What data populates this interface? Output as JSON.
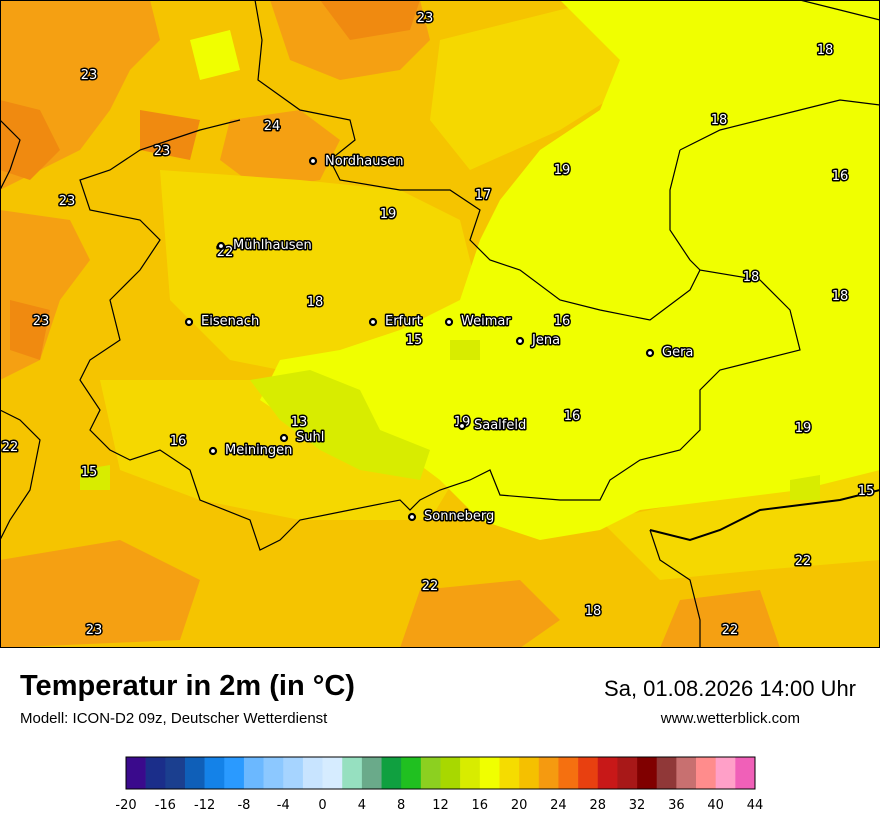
{
  "map": {
    "cities": [
      {
        "name": "Nordhausen",
        "dot": "nordhausen-dot"
      },
      {
        "name": "Mühlhausen",
        "dot": "muehlhausen-dot"
      },
      {
        "name": "Eisenach",
        "dot": "eisenach-dot"
      },
      {
        "name": "Erfurt",
        "dot": "erfurt-dot"
      },
      {
        "name": "Weimar",
        "dot": "weimar-dot"
      },
      {
        "name": "Jena",
        "dot": "jena-dot"
      },
      {
        "name": "Gera",
        "dot": "gera-dot"
      },
      {
        "name": "Suhl",
        "dot": "suhl-dot"
      },
      {
        "name": "Meiningen",
        "dot": "meiningen-dot"
      },
      {
        "name": "Saalfeld",
        "dot": "saalfeld-dot"
      },
      {
        "name": "Sonneberg",
        "dot": "sonneberg-dot"
      }
    ],
    "temperatures": [
      "23",
      "18",
      "23",
      "18",
      "24",
      "23",
      "19",
      "16",
      "23",
      "17",
      "19",
      "22",
      "18",
      "18",
      "23",
      "18",
      "16",
      "15",
      "13",
      "19",
      "16",
      "16",
      "22",
      "19",
      "15",
      "15",
      "22",
      "22",
      "18",
      "23",
      "22"
    ]
  },
  "footer": {
    "title": "Temperatur in 2m (in °C)",
    "model": "Modell: ICON-D2 09z, Deutscher Wetterdienst",
    "datetime": "Sa, 01.08.2026 14:00 Uhr",
    "website": "www.wetterblick.com"
  },
  "legend": {
    "ticks": [
      "-20",
      "-16",
      "-12",
      "-8",
      "-4",
      "0",
      "4",
      "8",
      "12",
      "16",
      "20",
      "24",
      "28",
      "32",
      "36",
      "40",
      "44"
    ],
    "colors": [
      "#3a0a8c",
      "#1b2e8a",
      "#1b3f8f",
      "#0f5fb8",
      "#1482e8",
      "#2a9aff",
      "#6bb8ff",
      "#8cc8ff",
      "#a6d4ff",
      "#c8e4ff",
      "#d6ecff",
      "#96e0c0",
      "#6aaa8a",
      "#10a040",
      "#20c020",
      "#8cd020",
      "#a8d800",
      "#d8ec00",
      "#f0ff00",
      "#f5dc00",
      "#f5c000",
      "#f59a10",
      "#f57010",
      "#e84010",
      "#c81818",
      "#a81818",
      "#800000",
      "#903838",
      "#c87070",
      "#ff8c8c",
      "#ffa0c8",
      "#f060b8"
    ]
  }
}
